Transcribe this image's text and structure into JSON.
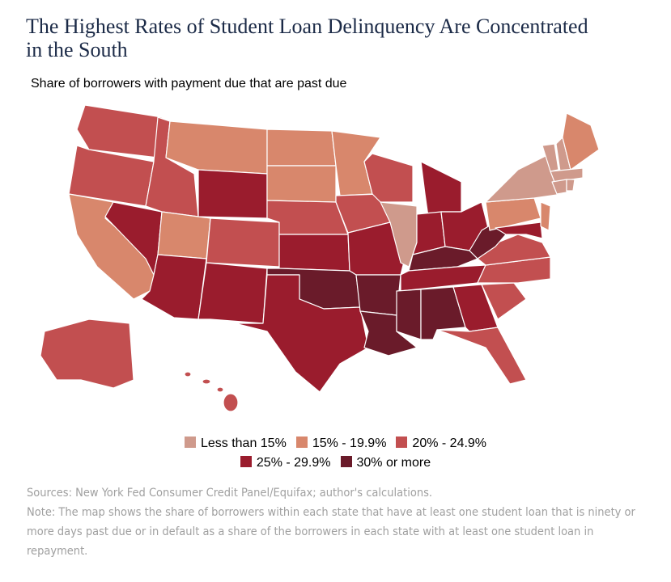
{
  "header": {
    "title": "The Highest Rates of Student Loan Delinquency Are Concentrated in the South",
    "subtitle": "Share of borrowers with payment due that are past due"
  },
  "legend": [
    {
      "label": "Less than 15%",
      "color": "#cf9a8c"
    },
    {
      "label": "15% - 19.9%",
      "color": "#d8876c"
    },
    {
      "label": "20% - 24.9%",
      "color": "#c24f50"
    },
    {
      "label": "25% - 29.9%",
      "color": "#9a1c2d"
    },
    {
      "label": "30% or more",
      "color": "#6a1b2a"
    }
  ],
  "footer": {
    "sources": "Sources: New York Fed Consumer Credit Panel/Equifax; author's calculations.",
    "note": "Note: The map shows the share of borrowers within each state that have at least one student loan that is ninety or more days past due or in default as a share of the borrowers in each state with at least one student loan in repayment."
  }
}
